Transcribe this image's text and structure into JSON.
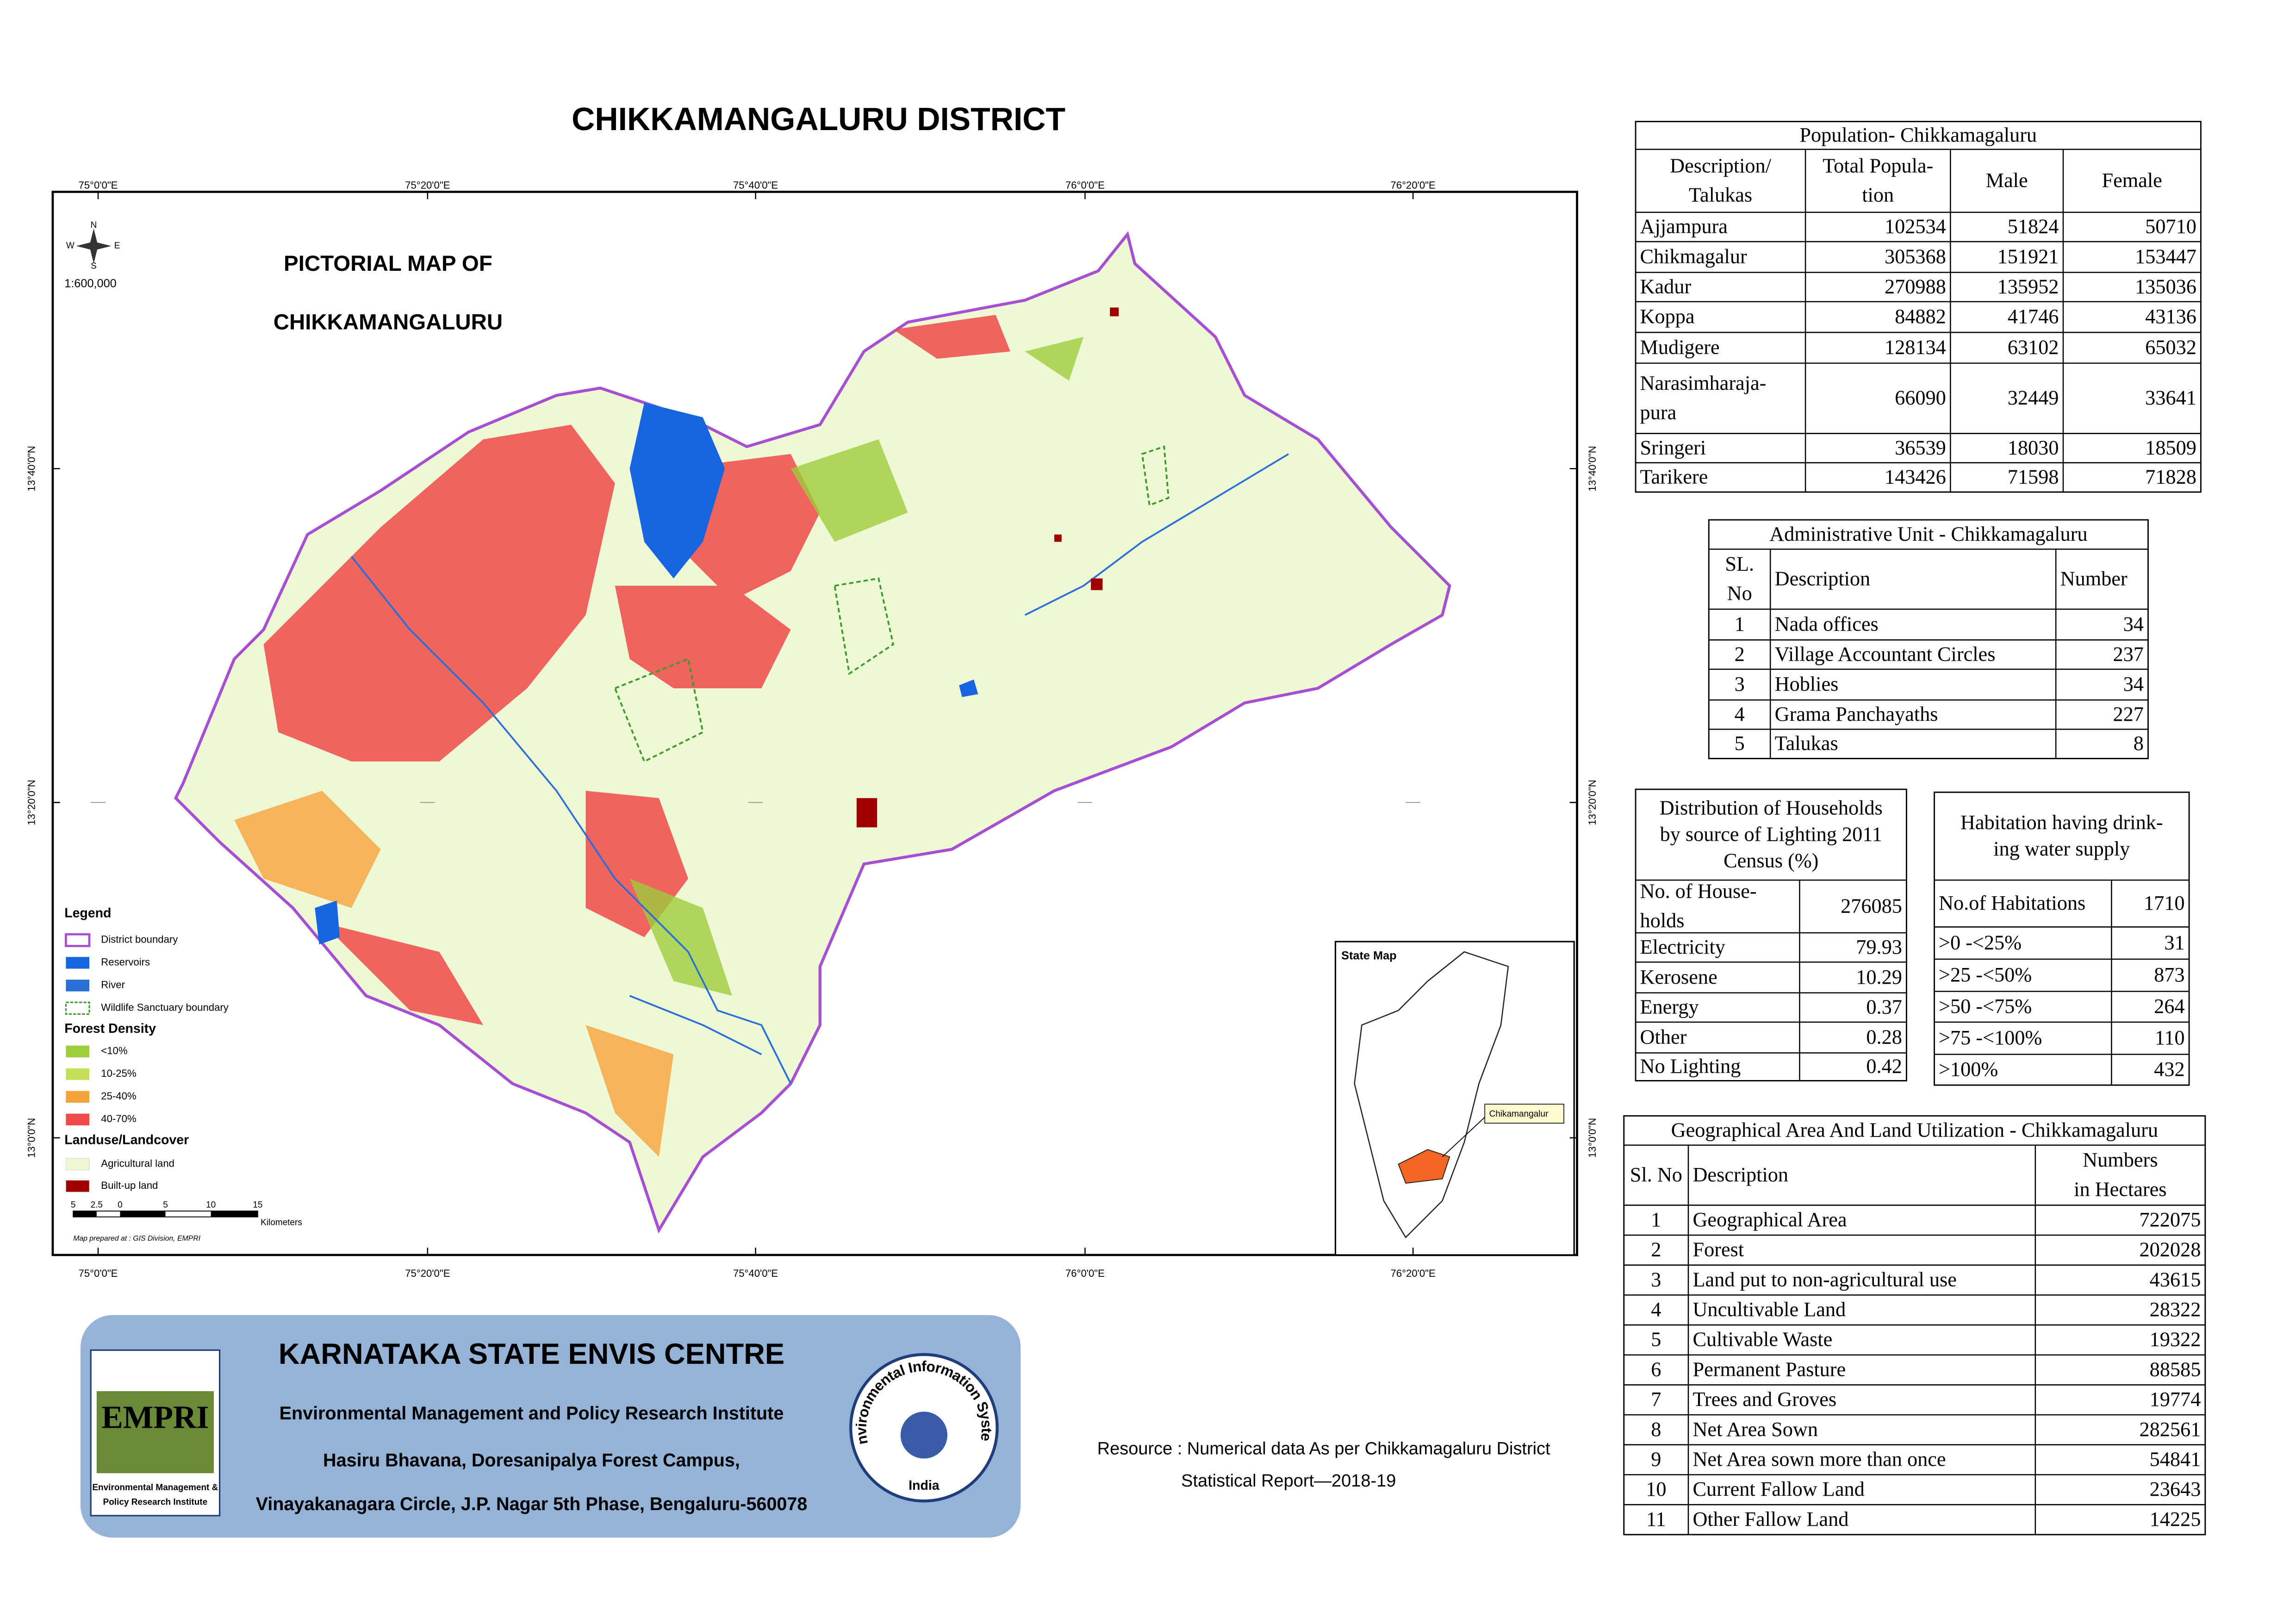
{
  "title": "CHIKKAMANGALURU DISTRICT",
  "map": {
    "heading": [
      "PICTORIAL MAP OF",
      "CHIKKAMANGALURU"
    ],
    "compass": [
      "N",
      "E",
      "S",
      "W"
    ],
    "scale": "1:600,000",
    "longitudes": [
      "75°0'0\"E",
      "75°20'0\"E",
      "75°40'0\"E",
      "76°0'0\"E",
      "76°20'0\"E"
    ],
    "latitudes": [
      "13°40'0\"N",
      "13°20'0\"N",
      "13°0'0\"N"
    ],
    "legend": {
      "title": "Legend",
      "items": [
        "District boundary",
        "Reservoirs",
        "River",
        "Wildlife Sanctuary boundary"
      ],
      "forest_title": "Forest Density",
      "forest_items": [
        "<10%",
        "10-25%",
        "25-40%",
        "40-70%"
      ],
      "landuse_title": "Landuse/Landcover",
      "landuse_items": [
        "Agricultural land",
        "Built-up land"
      ]
    },
    "scale_bar": {
      "labels": [
        "5",
        "2.5",
        "0",
        "5",
        "10",
        "15"
      ],
      "unit": "Kilometers"
    },
    "credit": "Map prepared at : GIS Division, EMPRI",
    "state_map": {
      "title": "State Map",
      "label": "Chikamangalur"
    }
  },
  "population": {
    "title": "Population- Chikkamagaluru",
    "headers": [
      [
        "Description/",
        "Talukas"
      ],
      [
        "Total Popula-",
        "tion"
      ],
      "Male",
      "Female"
    ],
    "rows": [
      [
        "Ajjampura",
        102534,
        51824,
        50710
      ],
      [
        "Chikmagalur",
        305368,
        151921,
        153447
      ],
      [
        "Kadur",
        270988,
        135952,
        135036
      ],
      [
        "Koppa",
        84882,
        41746,
        43136
      ],
      [
        "Mudigere",
        128134,
        63102,
        65032
      ],
      [
        [
          "Narasimharaja-",
          "pura"
        ],
        66090,
        32449,
        33641
      ],
      [
        "Sringeri",
        36539,
        18030,
        18509
      ],
      [
        "Tarikere",
        143426,
        71598,
        71828
      ]
    ]
  },
  "administrative": {
    "title": "Administrative Unit - Chikkamagaluru",
    "headers": [
      [
        "SL.",
        "No"
      ],
      "Description",
      "Number"
    ],
    "rows": [
      [
        1,
        "Nada offices",
        34
      ],
      [
        2,
        "Village Accountant Circles",
        237
      ],
      [
        3,
        "Hoblies",
        34
      ],
      [
        4,
        "Grama Panchayaths",
        227
      ],
      [
        5,
        "Talukas",
        8
      ]
    ]
  },
  "households": {
    "title": [
      "Distribution of Households",
      "by source of Lighting 2011",
      "Census (%)"
    ],
    "rows": [
      [
        [
          "No. of House-",
          "holds"
        ],
        276085
      ],
      [
        "Electricity",
        79.93
      ],
      [
        "Kerosene",
        10.29
      ],
      [
        "Energy",
        0.37
      ],
      [
        "Other",
        0.28
      ],
      [
        "No Lighting",
        0.42
      ]
    ]
  },
  "habitation": {
    "title": [
      "Habitation having drink-",
      "ing water supply"
    ],
    "rows": [
      [
        "No.of Habitations",
        1710
      ],
      [
        ">0 -<25%",
        31
      ],
      [
        ">25 -<50%",
        873
      ],
      [
        ">50 -<75%",
        264
      ],
      [
        ">75 -<100%",
        110
      ],
      [
        ">100%",
        432
      ]
    ]
  },
  "land_utilization": {
    "title": "Geographical Area  And Land Utilization - Chikkamagaluru",
    "headers": [
      "Sl. No",
      "Description",
      [
        "Numbers",
        "in Hectares"
      ]
    ],
    "rows": [
      [
        1,
        "Geographical Area",
        722075
      ],
      [
        2,
        "Forest",
        202028
      ],
      [
        3,
        "Land put to non-agricultural use",
        43615
      ],
      [
        4,
        "Uncultivable Land",
        28322
      ],
      [
        5,
        "Cultivable Waste",
        19322
      ],
      [
        6,
        "Permanent Pasture",
        88585
      ],
      [
        7,
        "Trees and Groves",
        19774
      ],
      [
        8,
        "Net Area Sown",
        282561
      ],
      [
        9,
        "Net Area sown more than once",
        54841
      ],
      [
        10,
        "Current Fallow Land",
        23643
      ],
      [
        11,
        "Other Fallow Land",
        14225
      ]
    ]
  },
  "footer": {
    "title": "KARNATAKA STATE ENVIS CENTRE",
    "lines": [
      "Environmental Management and Policy Research Institute",
      "Hasiru Bhavana, Doresanipalya Forest Campus,",
      "Vinayakanagara Circle, J.P. Nagar 5th Phase, Bengaluru-560078"
    ],
    "logo_text": "EMPRI",
    "logo_caption": [
      "Environmental Management &",
      "Policy Research Institute"
    ],
    "seal_text": "Environmental Information System",
    "seal_country": "India"
  },
  "resource": [
    "Resource : Numerical data As per Chikkamagaluru District",
    "Statistical Report—2018-19"
  ]
}
